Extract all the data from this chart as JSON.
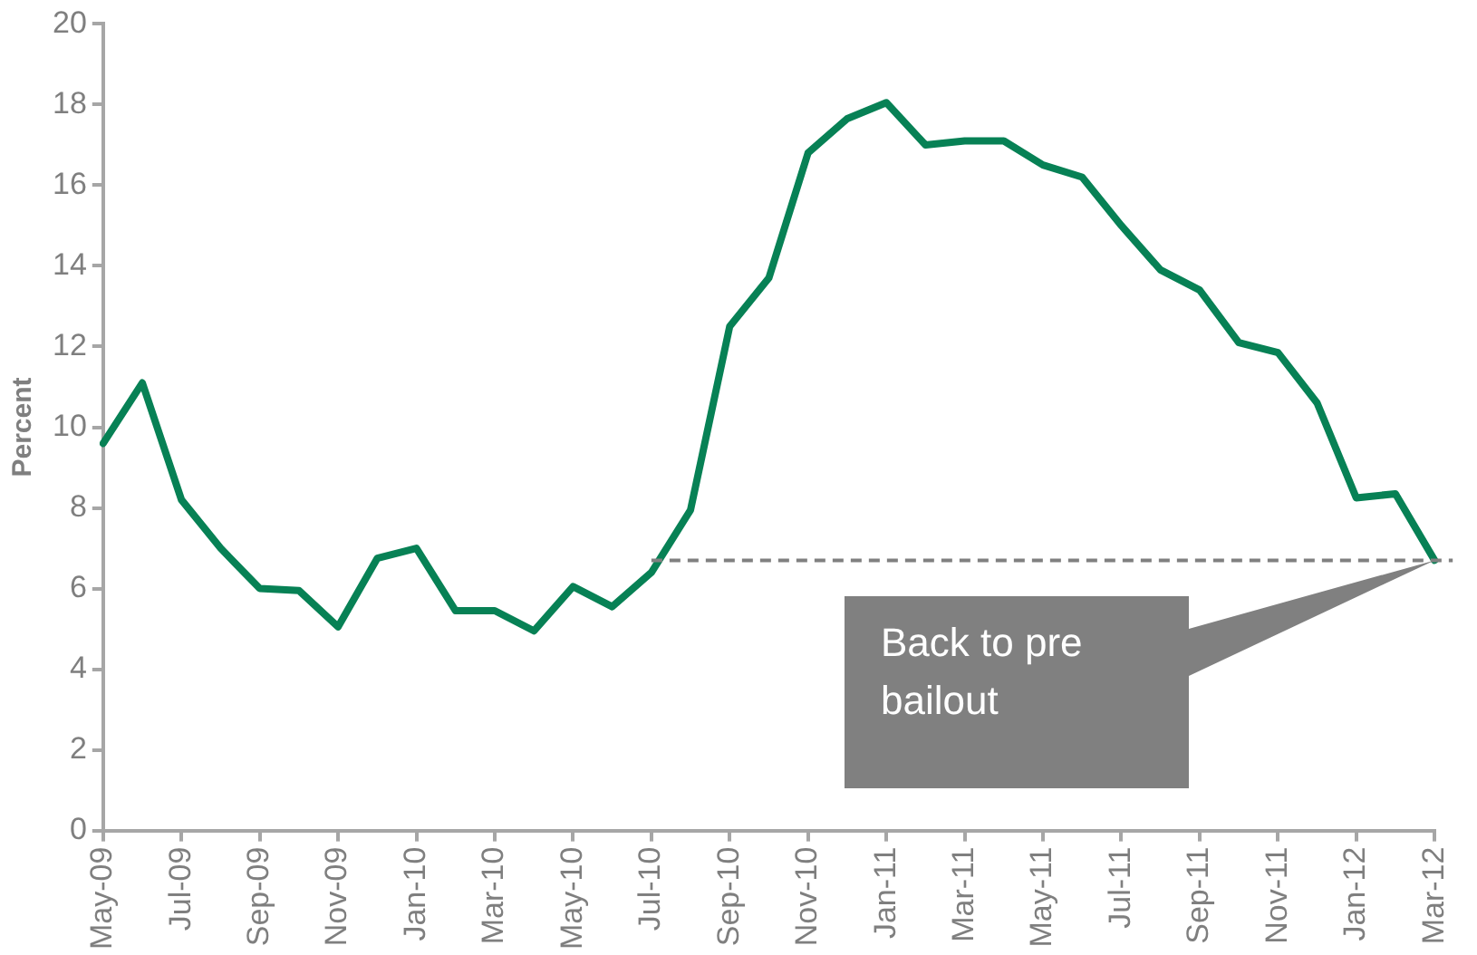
{
  "chart_data": {
    "type": "line",
    "ylabel": "Percent",
    "categories": [
      "May-09",
      null,
      "Jul-09",
      null,
      "Sep-09",
      null,
      "Nov-09",
      null,
      "Jan-10",
      null,
      "Mar-10",
      null,
      "May-10",
      null,
      "Jul-10",
      null,
      "Sep-10",
      null,
      "Nov-10",
      null,
      "Jan-11",
      null,
      "Mar-11",
      null,
      "May-11",
      null,
      "Jul-11",
      null,
      "Sep-11",
      null,
      "Nov-11",
      null,
      "Jan-12",
      null,
      "Mar-12"
    ],
    "series": [
      {
        "color": "#078155",
        "values": [
          9.6,
          11.1,
          8.2,
          7.0,
          6.0,
          5.95,
          5.05,
          6.75,
          7.0,
          5.45,
          5.45,
          4.95,
          6.05,
          5.55,
          6.4,
          7.95,
          12.5,
          13.7,
          16.8,
          17.65,
          18.05,
          17.0,
          17.1,
          17.1,
          16.5,
          16.2,
          15.0,
          13.9,
          13.4,
          12.1,
          11.85,
          10.6,
          8.25,
          8.35,
          6.7
        ]
      }
    ],
    "ylim": [
      0,
      20
    ],
    "yticks": [
      0,
      2,
      4,
      6,
      8,
      10,
      12,
      14,
      16,
      18,
      20
    ],
    "grid": false,
    "legend": false,
    "marker": "none",
    "line_style": "solid",
    "ref_lines": [
      {
        "axis": "y",
        "value": 6.7,
        "color": "#808080",
        "line_style": "dashed"
      }
    ],
    "annotations": [
      "Back to pre bailout"
    ]
  }
}
